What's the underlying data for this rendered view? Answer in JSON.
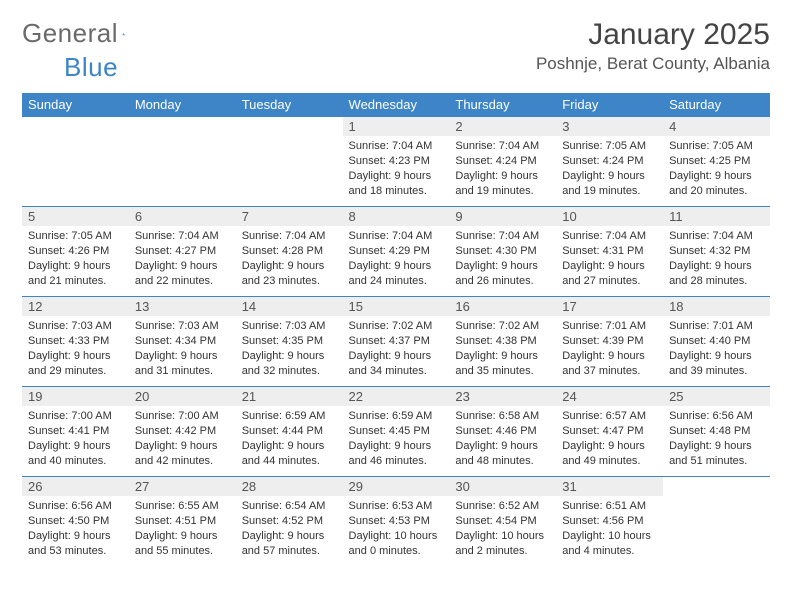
{
  "logo": {
    "text_general": "General",
    "text_blue": "Blue"
  },
  "title": "January 2025",
  "location": "Poshnje, Berat County, Albania",
  "colors": {
    "header_bg": "#3d85c6",
    "header_text": "#ffffff",
    "daynum_bg": "#eeeeee",
    "border": "#3d85c6",
    "body_text": "#333333"
  },
  "weekdays": [
    "Sunday",
    "Monday",
    "Tuesday",
    "Wednesday",
    "Thursday",
    "Friday",
    "Saturday"
  ],
  "weeks": [
    [
      {
        "n": "",
        "s": "",
        "ss": "",
        "d": ""
      },
      {
        "n": "",
        "s": "",
        "ss": "",
        "d": ""
      },
      {
        "n": "",
        "s": "",
        "ss": "",
        "d": ""
      },
      {
        "n": "1",
        "s": "Sunrise: 7:04 AM",
        "ss": "Sunset: 4:23 PM",
        "d": "Daylight: 9 hours and 18 minutes."
      },
      {
        "n": "2",
        "s": "Sunrise: 7:04 AM",
        "ss": "Sunset: 4:24 PM",
        "d": "Daylight: 9 hours and 19 minutes."
      },
      {
        "n": "3",
        "s": "Sunrise: 7:05 AM",
        "ss": "Sunset: 4:24 PM",
        "d": "Daylight: 9 hours and 19 minutes."
      },
      {
        "n": "4",
        "s": "Sunrise: 7:05 AM",
        "ss": "Sunset: 4:25 PM",
        "d": "Daylight: 9 hours and 20 minutes."
      }
    ],
    [
      {
        "n": "5",
        "s": "Sunrise: 7:05 AM",
        "ss": "Sunset: 4:26 PM",
        "d": "Daylight: 9 hours and 21 minutes."
      },
      {
        "n": "6",
        "s": "Sunrise: 7:04 AM",
        "ss": "Sunset: 4:27 PM",
        "d": "Daylight: 9 hours and 22 minutes."
      },
      {
        "n": "7",
        "s": "Sunrise: 7:04 AM",
        "ss": "Sunset: 4:28 PM",
        "d": "Daylight: 9 hours and 23 minutes."
      },
      {
        "n": "8",
        "s": "Sunrise: 7:04 AM",
        "ss": "Sunset: 4:29 PM",
        "d": "Daylight: 9 hours and 24 minutes."
      },
      {
        "n": "9",
        "s": "Sunrise: 7:04 AM",
        "ss": "Sunset: 4:30 PM",
        "d": "Daylight: 9 hours and 26 minutes."
      },
      {
        "n": "10",
        "s": "Sunrise: 7:04 AM",
        "ss": "Sunset: 4:31 PM",
        "d": "Daylight: 9 hours and 27 minutes."
      },
      {
        "n": "11",
        "s": "Sunrise: 7:04 AM",
        "ss": "Sunset: 4:32 PM",
        "d": "Daylight: 9 hours and 28 minutes."
      }
    ],
    [
      {
        "n": "12",
        "s": "Sunrise: 7:03 AM",
        "ss": "Sunset: 4:33 PM",
        "d": "Daylight: 9 hours and 29 minutes."
      },
      {
        "n": "13",
        "s": "Sunrise: 7:03 AM",
        "ss": "Sunset: 4:34 PM",
        "d": "Daylight: 9 hours and 31 minutes."
      },
      {
        "n": "14",
        "s": "Sunrise: 7:03 AM",
        "ss": "Sunset: 4:35 PM",
        "d": "Daylight: 9 hours and 32 minutes."
      },
      {
        "n": "15",
        "s": "Sunrise: 7:02 AM",
        "ss": "Sunset: 4:37 PM",
        "d": "Daylight: 9 hours and 34 minutes."
      },
      {
        "n": "16",
        "s": "Sunrise: 7:02 AM",
        "ss": "Sunset: 4:38 PM",
        "d": "Daylight: 9 hours and 35 minutes."
      },
      {
        "n": "17",
        "s": "Sunrise: 7:01 AM",
        "ss": "Sunset: 4:39 PM",
        "d": "Daylight: 9 hours and 37 minutes."
      },
      {
        "n": "18",
        "s": "Sunrise: 7:01 AM",
        "ss": "Sunset: 4:40 PM",
        "d": "Daylight: 9 hours and 39 minutes."
      }
    ],
    [
      {
        "n": "19",
        "s": "Sunrise: 7:00 AM",
        "ss": "Sunset: 4:41 PM",
        "d": "Daylight: 9 hours and 40 minutes."
      },
      {
        "n": "20",
        "s": "Sunrise: 7:00 AM",
        "ss": "Sunset: 4:42 PM",
        "d": "Daylight: 9 hours and 42 minutes."
      },
      {
        "n": "21",
        "s": "Sunrise: 6:59 AM",
        "ss": "Sunset: 4:44 PM",
        "d": "Daylight: 9 hours and 44 minutes."
      },
      {
        "n": "22",
        "s": "Sunrise: 6:59 AM",
        "ss": "Sunset: 4:45 PM",
        "d": "Daylight: 9 hours and 46 minutes."
      },
      {
        "n": "23",
        "s": "Sunrise: 6:58 AM",
        "ss": "Sunset: 4:46 PM",
        "d": "Daylight: 9 hours and 48 minutes."
      },
      {
        "n": "24",
        "s": "Sunrise: 6:57 AM",
        "ss": "Sunset: 4:47 PM",
        "d": "Daylight: 9 hours and 49 minutes."
      },
      {
        "n": "25",
        "s": "Sunrise: 6:56 AM",
        "ss": "Sunset: 4:48 PM",
        "d": "Daylight: 9 hours and 51 minutes."
      }
    ],
    [
      {
        "n": "26",
        "s": "Sunrise: 6:56 AM",
        "ss": "Sunset: 4:50 PM",
        "d": "Daylight: 9 hours and 53 minutes."
      },
      {
        "n": "27",
        "s": "Sunrise: 6:55 AM",
        "ss": "Sunset: 4:51 PM",
        "d": "Daylight: 9 hours and 55 minutes."
      },
      {
        "n": "28",
        "s": "Sunrise: 6:54 AM",
        "ss": "Sunset: 4:52 PM",
        "d": "Daylight: 9 hours and 57 minutes."
      },
      {
        "n": "29",
        "s": "Sunrise: 6:53 AM",
        "ss": "Sunset: 4:53 PM",
        "d": "Daylight: 10 hours and 0 minutes."
      },
      {
        "n": "30",
        "s": "Sunrise: 6:52 AM",
        "ss": "Sunset: 4:54 PM",
        "d": "Daylight: 10 hours and 2 minutes."
      },
      {
        "n": "31",
        "s": "Sunrise: 6:51 AM",
        "ss": "Sunset: 4:56 PM",
        "d": "Daylight: 10 hours and 4 minutes."
      },
      {
        "n": "",
        "s": "",
        "ss": "",
        "d": ""
      }
    ]
  ]
}
